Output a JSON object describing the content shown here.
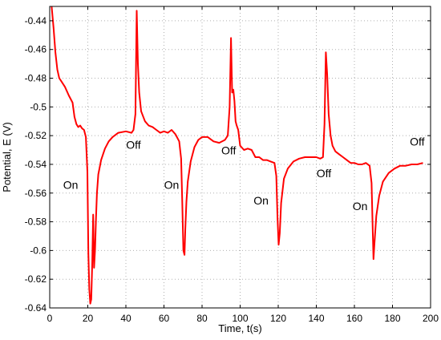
{
  "chart_data": {
    "type": "line",
    "xlabel": "Time, t(s)",
    "ylabel": "Potential, E (V)",
    "xlim": [
      0,
      200
    ],
    "ylim": [
      -0.64,
      -0.43
    ],
    "xticks": [
      0,
      20,
      40,
      60,
      80,
      100,
      120,
      140,
      160,
      180,
      200
    ],
    "xtick_labels": [
      "0",
      "20",
      "40",
      "60",
      "80",
      "100",
      "120",
      "140",
      "160",
      "180",
      "200"
    ],
    "yticks": [
      -0.64,
      -0.62,
      -0.6,
      -0.58,
      -0.56,
      -0.54,
      -0.52,
      -0.5,
      -0.48,
      -0.46,
      -0.44
    ],
    "ytick_labels": [
      "-0.64",
      "-0.62",
      "-0.6",
      "-0.58",
      "-0.56",
      "-0.54",
      "-0.52",
      "-0.5",
      "-0.48",
      "-0.46",
      "-0.44"
    ],
    "grid": true,
    "series": [
      {
        "color": "#ff0000",
        "x": [
          1,
          2,
          3,
          4,
          5,
          6,
          8,
          10,
          12,
          13,
          14,
          15,
          16,
          17,
          18,
          19,
          19.8,
          20.3,
          20.8,
          21.3,
          21.8,
          22.3,
          22.8,
          23.3,
          23.8,
          24.3,
          24.8,
          25.5,
          27,
          29,
          31,
          33,
          36,
          40,
          43,
          44,
          45,
          45.7,
          46.3,
          47,
          48,
          50,
          52,
          54,
          56,
          58,
          60,
          62,
          64,
          66,
          68,
          69,
          69.6,
          70.2,
          70.8,
          71.2,
          71.8,
          72.5,
          74,
          76,
          78,
          80,
          83,
          86,
          89,
          92,
          93.5,
          94.5,
          95.2,
          95.8,
          96.4,
          97,
          97.6,
          98.2,
          99,
          100,
          102,
          104,
          106,
          108,
          110,
          112,
          114,
          116,
          118,
          119,
          119.6,
          120.2,
          120.8,
          121.5,
          123,
          125,
          128,
          131,
          134,
          137,
          140,
          142,
          143.5,
          144.3,
          145,
          145.7,
          146.5,
          147.5,
          148.5,
          150,
          152,
          154,
          156,
          158,
          160,
          162,
          164,
          166,
          168,
          169,
          169.5,
          170,
          170.5,
          171.5,
          173,
          175,
          178,
          181,
          184,
          187,
          190,
          193,
          196
        ],
        "y": [
          -0.43,
          -0.445,
          -0.462,
          -0.474,
          -0.48,
          -0.482,
          -0.486,
          -0.492,
          -0.497,
          -0.507,
          -0.512,
          -0.514,
          -0.513,
          -0.515,
          -0.516,
          -0.521,
          -0.545,
          -0.602,
          -0.627,
          -0.637,
          -0.634,
          -0.61,
          -0.575,
          -0.612,
          -0.6,
          -0.578,
          -0.56,
          -0.547,
          -0.537,
          -0.529,
          -0.524,
          -0.521,
          -0.518,
          -0.517,
          -0.518,
          -0.516,
          -0.505,
          -0.433,
          -0.47,
          -0.49,
          -0.503,
          -0.51,
          -0.513,
          -0.514,
          -0.516,
          -0.518,
          -0.517,
          -0.518,
          -0.516,
          -0.519,
          -0.524,
          -0.536,
          -0.566,
          -0.6,
          -0.603,
          -0.585,
          -0.566,
          -0.552,
          -0.538,
          -0.528,
          -0.523,
          -0.521,
          -0.521,
          -0.524,
          -0.525,
          -0.523,
          -0.52,
          -0.5,
          -0.452,
          -0.49,
          -0.488,
          -0.496,
          -0.51,
          -0.513,
          -0.516,
          -0.527,
          -0.53,
          -0.529,
          -0.53,
          -0.535,
          -0.535,
          -0.537,
          -0.537,
          -0.538,
          -0.539,
          -0.548,
          -0.577,
          -0.596,
          -0.588,
          -0.567,
          -0.55,
          -0.543,
          -0.538,
          -0.536,
          -0.535,
          -0.535,
          -0.535,
          -0.536,
          -0.535,
          -0.512,
          -0.462,
          -0.477,
          -0.505,
          -0.52,
          -0.527,
          -0.531,
          -0.533,
          -0.535,
          -0.537,
          -0.539,
          -0.539,
          -0.54,
          -0.54,
          -0.539,
          -0.541,
          -0.553,
          -0.58,
          -0.606,
          -0.596,
          -0.576,
          -0.562,
          -0.552,
          -0.546,
          -0.543,
          -0.541,
          -0.541,
          -0.54,
          -0.54,
          -0.539
        ]
      }
    ],
    "annotations": [
      {
        "text": "On",
        "x": 11,
        "y": -0.557
      },
      {
        "text": "Off",
        "x": 44,
        "y": -0.529
      },
      {
        "text": "On",
        "x": 64,
        "y": -0.557
      },
      {
        "text": "Off",
        "x": 94,
        "y": -0.533
      },
      {
        "text": "On",
        "x": 111,
        "y": -0.568
      },
      {
        "text": "Off",
        "x": 144,
        "y": -0.549
      },
      {
        "text": "On",
        "x": 163,
        "y": -0.572
      },
      {
        "text": "Off",
        "x": 193,
        "y": -0.527
      }
    ]
  }
}
